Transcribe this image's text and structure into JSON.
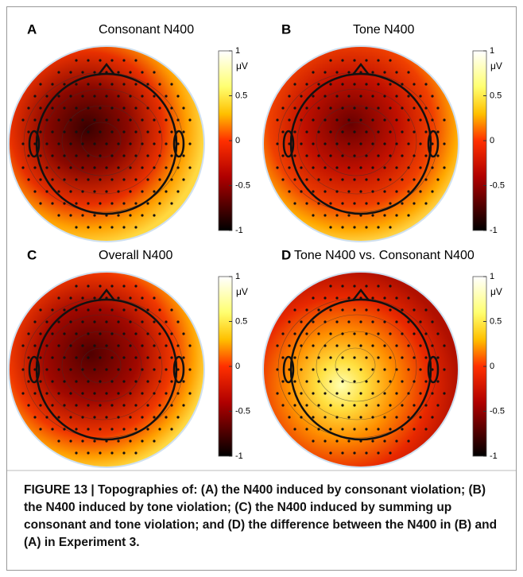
{
  "panels": [
    {
      "letter": "A",
      "title": "Consonant N400",
      "unit": "μV",
      "ticks": [
        "1",
        "0.5",
        "0",
        "-0.5",
        "-1"
      ]
    },
    {
      "letter": "B",
      "title": "Tone N400",
      "unit": "μV",
      "ticks": [
        "1",
        "0.5",
        "0",
        "-0.5",
        "-1"
      ]
    },
    {
      "letter": "C",
      "title": "Overall N400",
      "unit": "μV",
      "ticks": [
        "1",
        "0.5",
        "0",
        "-0.5",
        "-1"
      ]
    },
    {
      "letter": "D",
      "title": "Tone N400 vs. Consonant N400",
      "unit": "μV",
      "ticks": [
        "1",
        "0.5",
        "0",
        "-0.5",
        "-1"
      ]
    }
  ],
  "caption": "FIGURE 13 | Topographies of: (A) the N400 induced by consonant violation; (B) the N400 induced by tone violation; (C) the N400 induced by summing up consonant and tone violation; and (D) the difference between the N400 in (B) and (A) in Experiment 3."
}
